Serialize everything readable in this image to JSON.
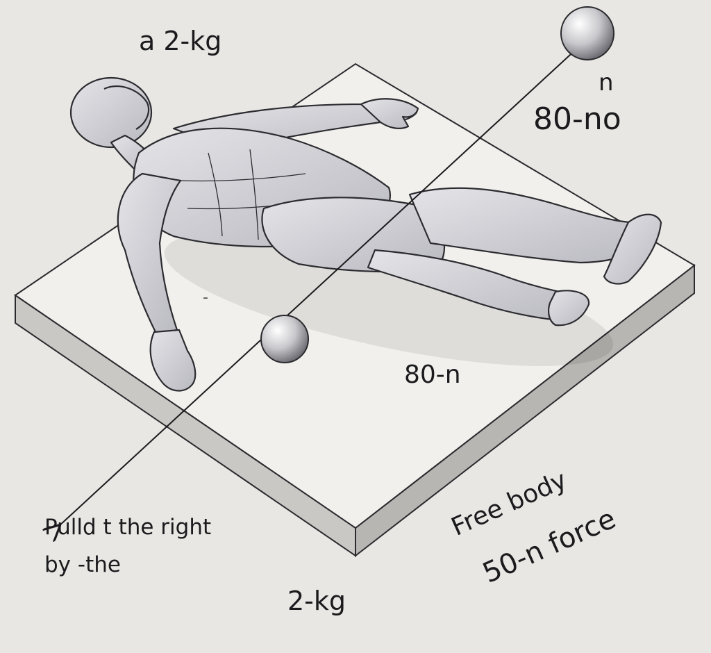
{
  "labels": {
    "top_left": "a 2-kg",
    "top_right_small": "n",
    "top_right": "80-no",
    "left_mark": "-",
    "center": "80-n",
    "bottom_left_line1": "Pulld t the right",
    "bottom_left_line2": "by -the",
    "bottom_center": "2-kg",
    "bottom_right_line1": "Free body",
    "bottom_right_line2": "50-n force"
  },
  "colors": {
    "background": "#e8e7e3",
    "slab_top": "#f1f0ec",
    "slab_side": "#c9c8c4",
    "figure": "#d3d3d7",
    "ink": "#1b1b1e"
  }
}
